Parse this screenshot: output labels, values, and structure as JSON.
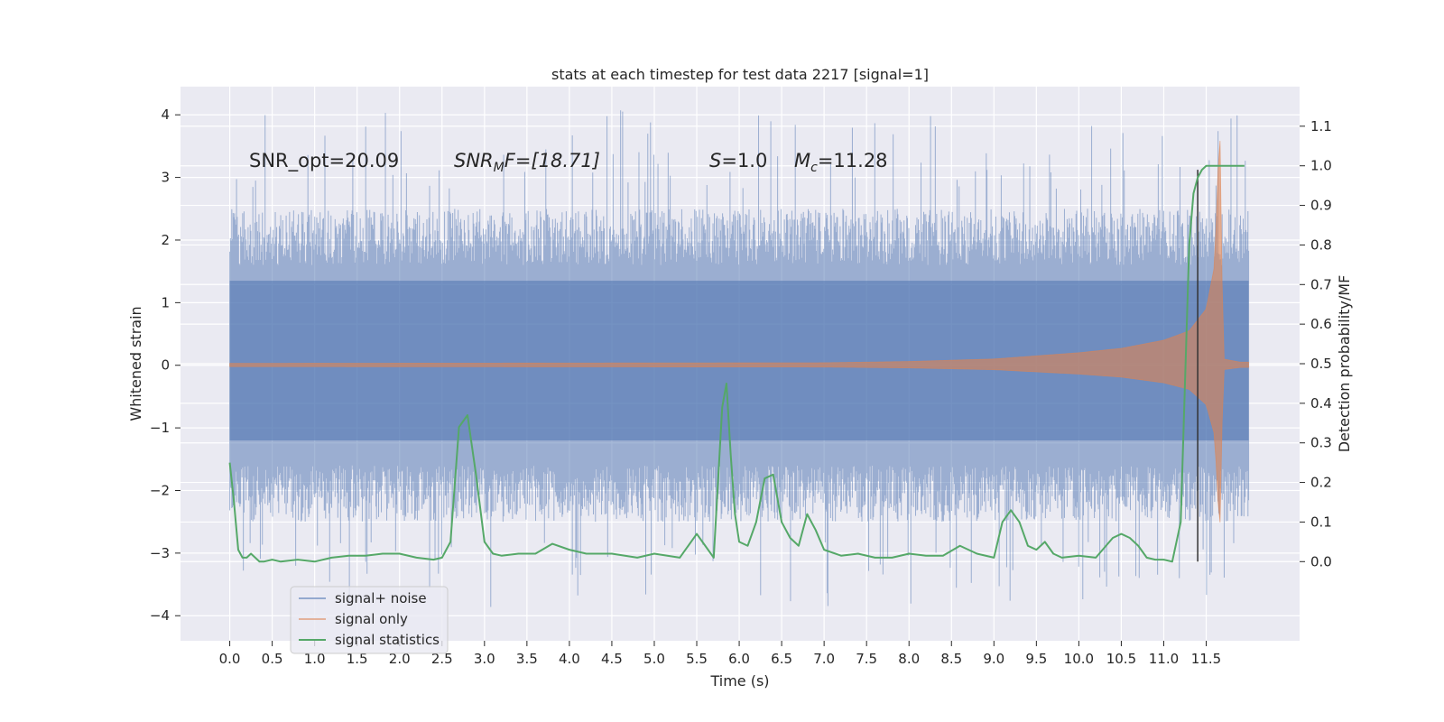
{
  "chart_data": {
    "type": "line",
    "title": "stats at each timestep for test data 2217 [signal=1]",
    "xlabel": "Time (s)",
    "ylabel": "Whitened strain",
    "y2label": "Detection probability/MF",
    "xlim": [
      -0.58,
      12.6
    ],
    "ylim": [
      -4.4,
      4.45
    ],
    "y2lim": [
      -0.2,
      1.2
    ],
    "x_ticks": [
      0.0,
      0.5,
      1.0,
      1.5,
      2.0,
      2.5,
      3.0,
      3.5,
      4.0,
      4.5,
      5.0,
      5.5,
      6.0,
      6.5,
      7.0,
      7.5,
      8.0,
      8.5,
      9.0,
      9.5,
      10.0,
      10.5,
      11.0,
      11.5
    ],
    "x_tick_labels": [
      "0.0",
      "0.5",
      "1.0",
      "1.5",
      "2.0",
      "2.5",
      "3.0",
      "3.5",
      "4.0",
      "4.5",
      "5.0",
      "5.5",
      "6.0",
      "6.5",
      "7.0",
      "7.5",
      "8.0",
      "8.5",
      "9.0",
      "9.5",
      "10.0",
      "10.5",
      "11.0",
      "11.5"
    ],
    "y_ticks": [
      4,
      3,
      2,
      1,
      0,
      -1,
      -2,
      -3,
      -4
    ],
    "y_tick_labels": [
      "4",
      "3",
      "2",
      "1",
      "0",
      "−1",
      "−2",
      "−3",
      "−4"
    ],
    "y2_ticks": [
      1.1,
      1.0,
      0.9,
      0.8,
      0.7,
      0.6,
      0.5,
      0.4,
      0.3,
      0.2,
      0.1,
      0.0
    ],
    "y2_tick_labels": [
      "1.1",
      "1.0",
      "0.9",
      "0.8",
      "0.7",
      "0.6",
      "0.5",
      "0.4",
      "0.3",
      "0.2",
      "0.1",
      "0.0"
    ],
    "grid": true,
    "legend_position": "lower-left",
    "annotations": {
      "snr_opt": "SNR_opt=20.09",
      "snr_mf_label": "SNR",
      "snr_mf_sub": "M",
      "snr_mf_value": "F=[18.71]",
      "s_label": "S",
      "s_value": "=1.0",
      "mc_label": "M",
      "mc_sub": "c",
      "mc_value": "=11.28"
    },
    "colors": {
      "background": "#eaeaf2",
      "grid": "#ffffff",
      "noise": "#4c72b0",
      "signal": "#dd8452",
      "stats": "#55a868",
      "vline": "#333333"
    },
    "series": [
      {
        "name": "signal+ noise",
        "axis": "left",
        "x_range": [
          0.0,
          12.0
        ],
        "band_core": [
          -1.2,
          1.35
        ],
        "spike_extremes": {
          "max": 4.08,
          "min": -3.87
        }
      },
      {
        "name": "signal only",
        "axis": "left",
        "x_range": [
          0.0,
          12.0
        ],
        "envelope_x": [
          0.0,
          7.0,
          8.0,
          9.0,
          10.0,
          10.5,
          11.0,
          11.3,
          11.5,
          11.6,
          11.66,
          11.7,
          11.9
        ],
        "envelope_amp": [
          0.03,
          0.04,
          0.06,
          0.1,
          0.2,
          0.27,
          0.4,
          0.55,
          0.9,
          1.6,
          3.9,
          0.1,
          0.05
        ]
      },
      {
        "name": "signal statistics",
        "axis": "right",
        "x": [
          0.0,
          0.05,
          0.1,
          0.15,
          0.2,
          0.25,
          0.3,
          0.35,
          0.4,
          0.5,
          0.6,
          0.8,
          1.0,
          1.2,
          1.4,
          1.6,
          1.8,
          2.0,
          2.2,
          2.4,
          2.5,
          2.6,
          2.7,
          2.8,
          2.9,
          3.0,
          3.1,
          3.2,
          3.4,
          3.6,
          3.8,
          4.0,
          4.2,
          4.5,
          4.8,
          5.0,
          5.3,
          5.5,
          5.6,
          5.7,
          5.8,
          5.85,
          5.9,
          5.95,
          6.0,
          6.1,
          6.2,
          6.3,
          6.4,
          6.5,
          6.6,
          6.7,
          6.8,
          6.9,
          7.0,
          7.2,
          7.4,
          7.6,
          7.8,
          8.0,
          8.2,
          8.4,
          8.6,
          8.8,
          9.0,
          9.1,
          9.2,
          9.3,
          9.4,
          9.5,
          9.6,
          9.7,
          9.8,
          10.0,
          10.2,
          10.4,
          10.5,
          10.6,
          10.7,
          10.8,
          10.9,
          11.0,
          11.1,
          11.2,
          11.25,
          11.3,
          11.35,
          11.4,
          11.45,
          11.5,
          11.55,
          11.6,
          11.7,
          11.8,
          11.9,
          11.95
        ],
        "values": [
          0.25,
          0.15,
          0.03,
          0.01,
          0.01,
          0.02,
          0.01,
          0.0,
          0.0,
          0.005,
          0.0,
          0.005,
          0.0,
          0.01,
          0.015,
          0.015,
          0.02,
          0.02,
          0.01,
          0.005,
          0.01,
          0.05,
          0.34,
          0.37,
          0.22,
          0.05,
          0.02,
          0.015,
          0.02,
          0.02,
          0.045,
          0.03,
          0.02,
          0.02,
          0.01,
          0.02,
          0.01,
          0.07,
          0.04,
          0.01,
          0.39,
          0.45,
          0.27,
          0.12,
          0.05,
          0.04,
          0.1,
          0.21,
          0.22,
          0.1,
          0.06,
          0.04,
          0.12,
          0.08,
          0.03,
          0.015,
          0.02,
          0.01,
          0.01,
          0.02,
          0.015,
          0.015,
          0.04,
          0.02,
          0.01,
          0.1,
          0.13,
          0.1,
          0.04,
          0.03,
          0.05,
          0.02,
          0.01,
          0.015,
          0.01,
          0.06,
          0.07,
          0.06,
          0.04,
          0.01,
          0.005,
          0.005,
          0.0,
          0.1,
          0.45,
          0.8,
          0.93,
          0.97,
          0.99,
          1.0,
          1.0,
          1.0,
          1.0,
          1.0,
          1.0,
          1.0
        ]
      }
    ],
    "vline_x": 11.4
  }
}
